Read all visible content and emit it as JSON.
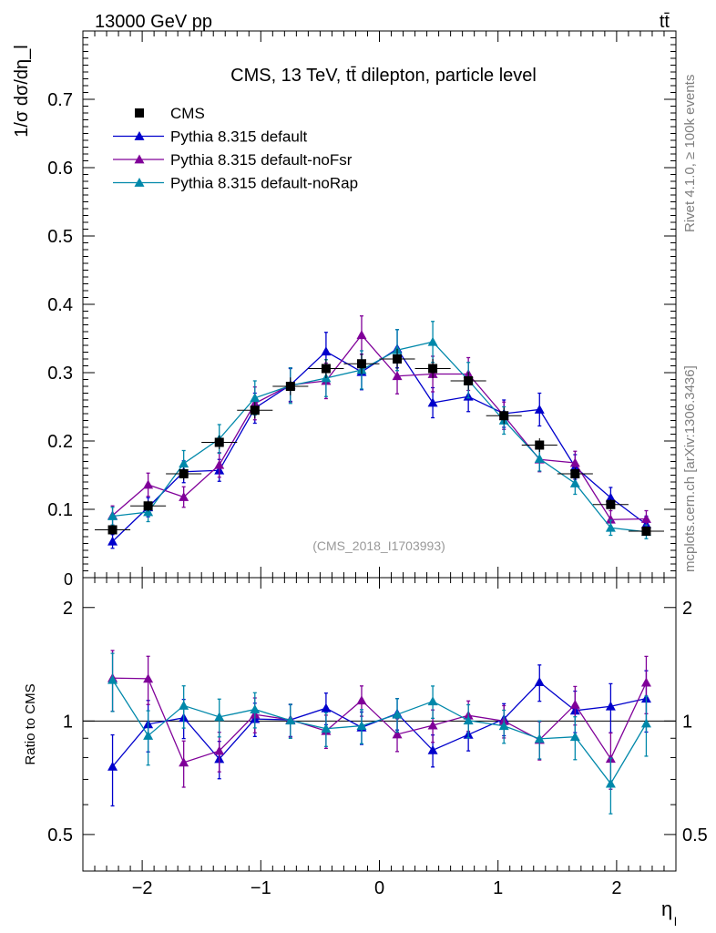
{
  "header": {
    "left": "13000 GeV pp",
    "right": "tt̄"
  },
  "side_labels": {
    "rivet": "Rivet 4.1.0, ≥ 100k events",
    "mcplots": "mcplots.cern.ch [arXiv:1306.3436]"
  },
  "chart_data": {
    "type": "line",
    "title": "CMS, 13 TeV, tt̄ dilepton, particle level",
    "analysis_tag": "(CMS_2018_I1703993)",
    "xlabel": "η",
    "xlabel_sub": "l",
    "ylabel_main": "1/σ dσ/dη_l",
    "ylabel_ratio": "Ratio to CMS",
    "xlim": [
      -2.5,
      2.5
    ],
    "ylim_main": [
      0,
      0.8
    ],
    "ylim_ratio": [
      0.4,
      2.4
    ],
    "x_ticks": [
      -2,
      -1,
      0,
      1,
      2
    ],
    "x_tick_labels": [
      "−2",
      "−1",
      "0",
      "1",
      "2"
    ],
    "y_ticks_main": [
      0.1,
      0.2,
      0.3,
      0.4,
      0.5,
      0.6,
      0.7
    ],
    "y_tick_labels_main": [
      "0.1",
      "0.2",
      "0.3",
      "0.4",
      "0.5",
      "0.6",
      "0.7"
    ],
    "y_zero_label": "0",
    "y_ticks_ratio": [
      0.5,
      1,
      2
    ],
    "y_tick_labels_ratio": [
      "0.5",
      "1",
      "2"
    ],
    "x": [
      -2.25,
      -1.95,
      -1.65,
      -1.35,
      -1.05,
      -0.75,
      -0.45,
      -0.15,
      0.15,
      0.45,
      0.75,
      1.05,
      1.35,
      1.65,
      1.95,
      2.25
    ],
    "data": {
      "name": "CMS",
      "color": "#000000",
      "values": [
        0.07,
        0.105,
        0.152,
        0.198,
        0.245,
        0.28,
        0.306,
        0.313,
        0.32,
        0.306,
        0.288,
        0.237,
        0.194,
        0.152,
        0.107,
        0.068
      ],
      "errors": [
        0.007,
        0.008,
        0.009,
        0.01,
        0.012,
        0.013,
        0.014,
        0.015,
        0.015,
        0.014,
        0.013,
        0.012,
        0.01,
        0.009,
        0.008,
        0.007
      ]
    },
    "series": [
      {
        "name": "Pythia 8.315 default",
        "color": "#0000cc",
        "values": [
          0.053,
          0.103,
          0.155,
          0.157,
          0.248,
          0.282,
          0.331,
          0.301,
          0.335,
          0.256,
          0.265,
          0.24,
          0.246,
          0.162,
          0.117,
          0.078
        ],
        "errors": [
          0.01,
          0.014,
          0.016,
          0.016,
          0.022,
          0.024,
          0.028,
          0.026,
          0.028,
          0.022,
          0.022,
          0.02,
          0.024,
          0.018,
          0.015,
          0.012
        ]
      },
      {
        "name": "Pythia 8.315 default-noFsr",
        "color": "#800099",
        "values": [
          0.091,
          0.136,
          0.118,
          0.165,
          0.255,
          0.282,
          0.288,
          0.355,
          0.295,
          0.298,
          0.298,
          0.237,
          0.173,
          0.168,
          0.085,
          0.086
        ],
        "errors": [
          0.014,
          0.017,
          0.015,
          0.018,
          0.024,
          0.025,
          0.026,
          0.028,
          0.026,
          0.026,
          0.024,
          0.02,
          0.018,
          0.017,
          0.013,
          0.012
        ]
      },
      {
        "name": "Pythia 8.315 default-noRap",
        "color": "#0088aa",
        "values": [
          0.09,
          0.096,
          0.167,
          0.203,
          0.263,
          0.281,
          0.292,
          0.304,
          0.333,
          0.345,
          0.289,
          0.23,
          0.174,
          0.138,
          0.073,
          0.067
        ],
        "errors": [
          0.013,
          0.014,
          0.019,
          0.021,
          0.025,
          0.026,
          0.027,
          0.028,
          0.03,
          0.03,
          0.026,
          0.02,
          0.018,
          0.016,
          0.011,
          0.01
        ]
      }
    ]
  }
}
